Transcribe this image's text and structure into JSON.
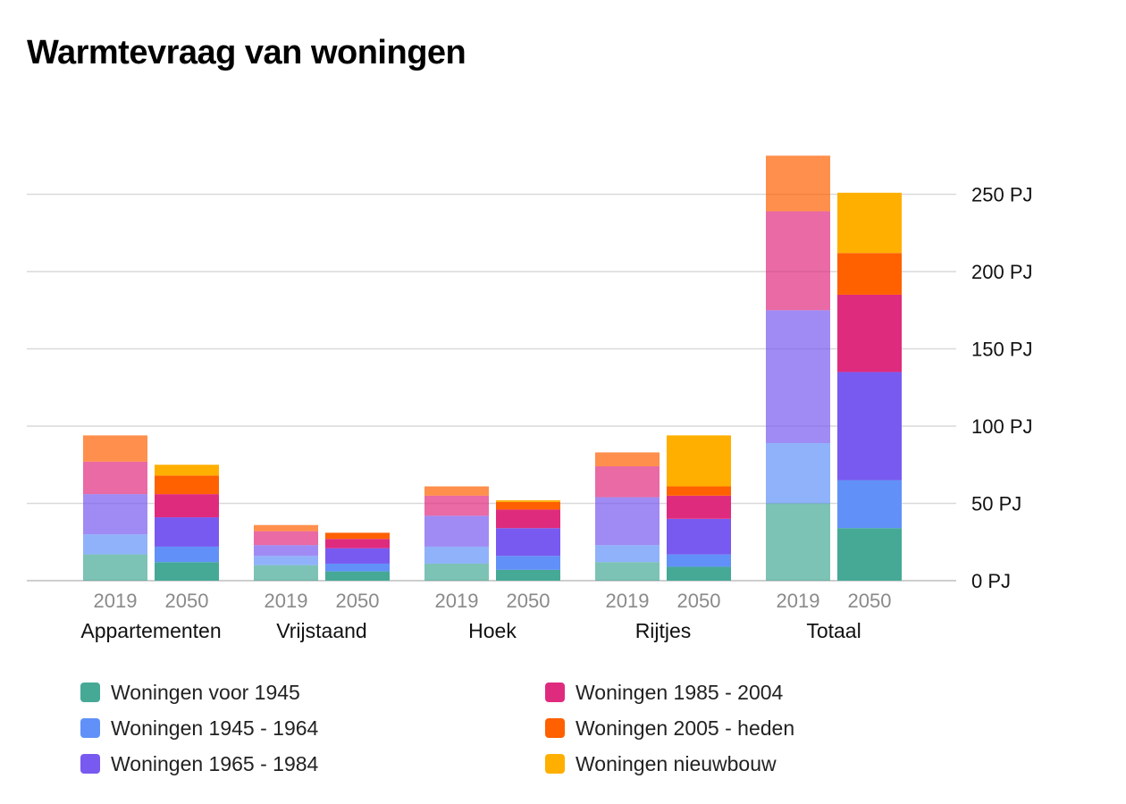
{
  "chart_data": {
    "type": "bar",
    "stacked": true,
    "title": "Warmtevraag van woningen",
    "y_unit": "PJ",
    "ylim": [
      0,
      280
    ],
    "y_ticks": [
      0,
      50,
      100,
      150,
      200,
      250
    ],
    "y_tick_labels": [
      "0 PJ",
      "50 PJ",
      "100 PJ",
      "150 PJ",
      "200 PJ",
      "250 PJ"
    ],
    "y_axis_position": "right",
    "grid": true,
    "legend_position": "bottom",
    "groups": [
      "Appartementen",
      "Vrijstaand",
      "Hoek",
      "Rijtjes",
      "Totaal"
    ],
    "years": [
      "2019",
      "2050"
    ],
    "series": [
      {
        "name": "Woningen voor 1945",
        "color": "#45A996",
        "values": [
          [
            17,
            12
          ],
          [
            10,
            6
          ],
          [
            11,
            7
          ],
          [
            12,
            9
          ],
          [
            50,
            34
          ]
        ]
      },
      {
        "name": "Woningen 1945 - 1964",
        "color": "#6191F8",
        "values": [
          [
            13,
            10
          ],
          [
            6,
            5
          ],
          [
            11,
            9
          ],
          [
            11,
            8
          ],
          [
            39,
            31
          ]
        ]
      },
      {
        "name": "Woningen 1965 - 1984",
        "color": "#785AF0",
        "values": [
          [
            26,
            19
          ],
          [
            7,
            10
          ],
          [
            20,
            18
          ],
          [
            31,
            23
          ],
          [
            86,
            70
          ]
        ]
      },
      {
        "name": "Woningen 1985 - 2004",
        "color": "#DF2B7E",
        "values": [
          [
            21,
            15
          ],
          [
            9,
            6
          ],
          [
            13,
            12
          ],
          [
            20,
            15
          ],
          [
            64,
            50
          ]
        ]
      },
      {
        "name": "Woningen 2005 - heden",
        "color": "#FF6000",
        "values": [
          [
            17,
            12
          ],
          [
            4,
            4
          ],
          [
            6,
            5
          ],
          [
            9,
            6
          ],
          [
            36,
            27
          ]
        ]
      },
      {
        "name": "Woningen nieuwbouw",
        "color": "#FFAF00",
        "values": [
          [
            0,
            7
          ],
          [
            0,
            0
          ],
          [
            0,
            1
          ],
          [
            0,
            33
          ],
          [
            0,
            39
          ]
        ]
      }
    ]
  }
}
